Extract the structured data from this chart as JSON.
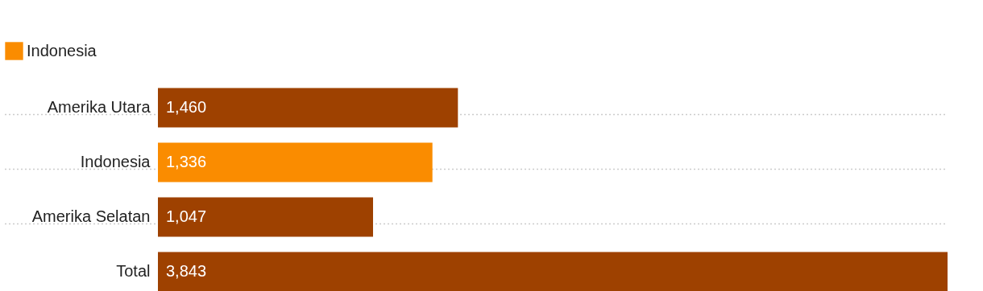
{
  "chart_data": {
    "type": "bar",
    "orientation": "horizontal",
    "categories": [
      "Amerika Utara",
      "Indonesia",
      "Amerika Selatan",
      "Total"
    ],
    "series": [
      {
        "name": "Indonesia",
        "color": "#fa8c00",
        "values": [
          null,
          1336,
          null,
          null
        ],
        "value_labels": [
          null,
          "1,336",
          null,
          null
        ]
      },
      {
        "color": "#9e4100",
        "values": [
          1460,
          null,
          1047,
          3843
        ],
        "value_labels": [
          "1,460",
          null,
          "1,047",
          "3,843"
        ]
      }
    ],
    "grid": "y",
    "legend": "top left"
  }
}
